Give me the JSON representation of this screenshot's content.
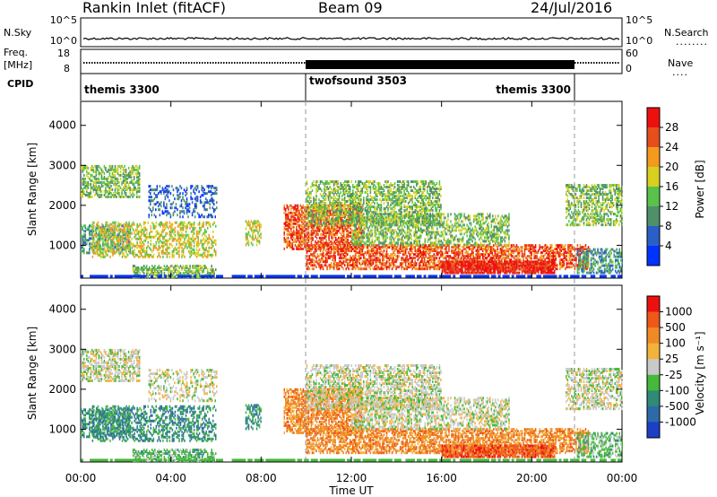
{
  "header": {
    "title": "Rankin Inlet (fitACF)",
    "beam": "Beam 09",
    "date": "24/Jul/2016"
  },
  "status_panels": {
    "nsky_label": "N.Sky",
    "nsearch_label": "N.Search",
    "nsearch_dots": "........",
    "freq_label": "Freq.",
    "freq_unit": "[MHz]",
    "nave_label": "Nave",
    "nave_dots": "....",
    "cpid_label": "CPID",
    "noise_ticks": [
      "10^5",
      "10^0"
    ],
    "freq_ticks": [
      "18",
      "8"
    ],
    "nave_ticks": [
      "60",
      "0"
    ],
    "cpid_segments": [
      {
        "label": "themis 3300",
        "start_h": 0,
        "end_h": 10
      },
      {
        "label": "twofsound 3503",
        "start_h": 10,
        "end_h": 22
      },
      {
        "label": "themis 3300",
        "start_h": 10,
        "end_h": 22,
        "right_aligned": true
      }
    ]
  },
  "chart_data": [
    {
      "type": "heatmap",
      "name": "power",
      "ylabel": "Slant Range [km]",
      "y_ticks": [
        1000,
        2000,
        3000,
        4000
      ],
      "ylim": [
        180,
        4600
      ],
      "xlim": [
        0,
        24
      ],
      "colorbar_label": "Power [dB]",
      "colorbar_ticks": [
        "28",
        "24",
        "20",
        "16",
        "12",
        "8",
        "4"
      ],
      "colors": [
        "#0033ff",
        "#2a5fc8",
        "#4f8f6a",
        "#59c24a",
        "#d8d020",
        "#f39a1f",
        "#e64e1c",
        "#ee1010"
      ]
    },
    {
      "type": "heatmap",
      "name": "velocity",
      "ylabel": "Slant Range [km]",
      "y_ticks": [
        1000,
        2000,
        3000,
        4000
      ],
      "ylim": [
        180,
        4600
      ],
      "xlim": [
        0,
        24
      ],
      "xlabel": "Time UT",
      "x_ticks": [
        "00:00",
        "04:00",
        "08:00",
        "12:00",
        "16:00",
        "20:00",
        "00:00"
      ],
      "colorbar_label": "Velocity [m s⁻¹]",
      "colorbar_ticks": [
        "1000",
        "500",
        "100",
        "25",
        "-25",
        "-100",
        "-500",
        "-1000"
      ],
      "colors": [
        "#1c3fc4",
        "#2d6aa8",
        "#2f8a78",
        "#44b93a",
        "#c9c9c9",
        "#f2b23c",
        "#f08a26",
        "#ee5818",
        "#ee1010"
      ]
    }
  ]
}
